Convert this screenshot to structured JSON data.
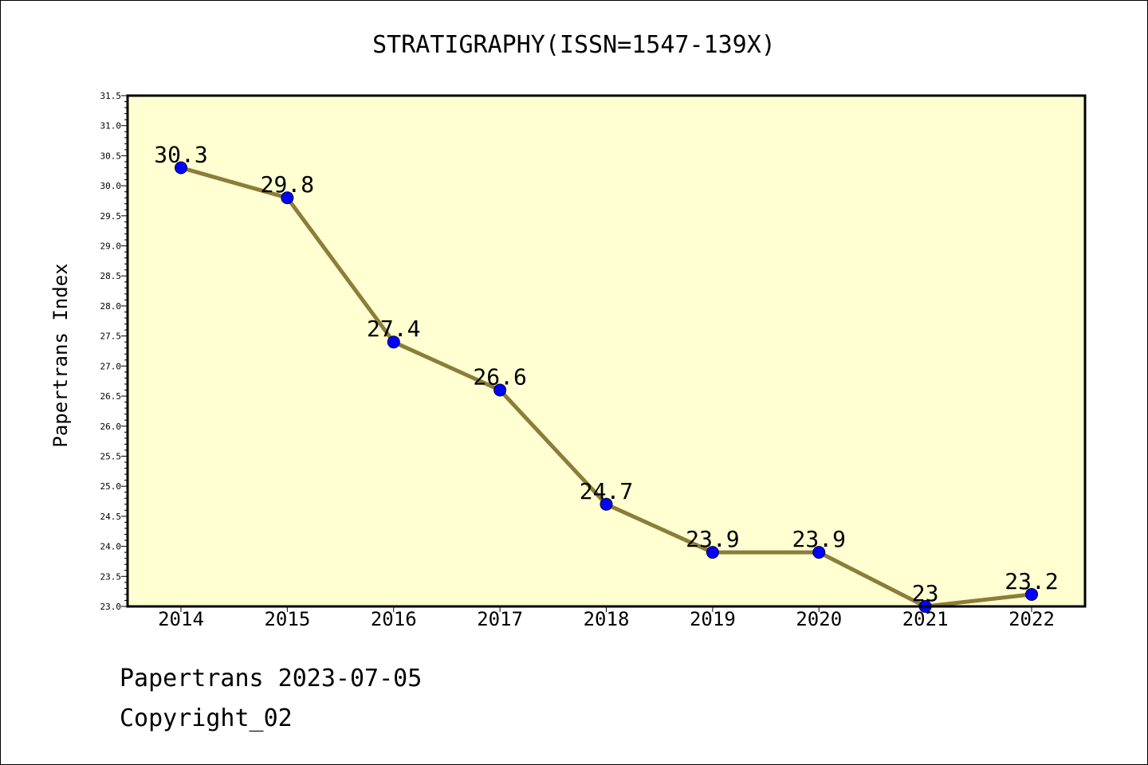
{
  "chart_data": {
    "type": "line",
    "title": "STRATIGRAPHY(ISSN=1547-139X)",
    "xlabel": "",
    "ylabel": "Papertrans Index",
    "categories": [
      "2014",
      "2015",
      "2016",
      "2017",
      "2018",
      "2019",
      "2020",
      "2021",
      "2022"
    ],
    "series": [
      {
        "values": [
          30.3,
          29.8,
          27.4,
          26.6,
          24.7,
          23.9,
          23.9,
          23.0,
          23.2
        ],
        "labels": [
          "30.3",
          "29.8",
          "27.4",
          "26.6",
          "24.7",
          "23.9",
          "23.9",
          "23",
          "23.2"
        ]
      }
    ],
    "ylim": [
      23.0,
      31.5
    ],
    "yticks": [
      "23.0",
      "23.5",
      "24.0",
      "24.5",
      "25.0",
      "25.5",
      "26.0",
      "26.5",
      "27.0",
      "27.5",
      "28.0",
      "28.5",
      "29.0",
      "29.5",
      "30.0",
      "30.5",
      "31.0",
      "31.5"
    ],
    "grid": false,
    "colors": {
      "plot_background": "#ffffd2",
      "line": "#8b7d3a",
      "marker": "#0000ff"
    }
  },
  "footer": {
    "date_line": "Papertrans 2023-07-05",
    "copyright": "Copyright_02"
  }
}
